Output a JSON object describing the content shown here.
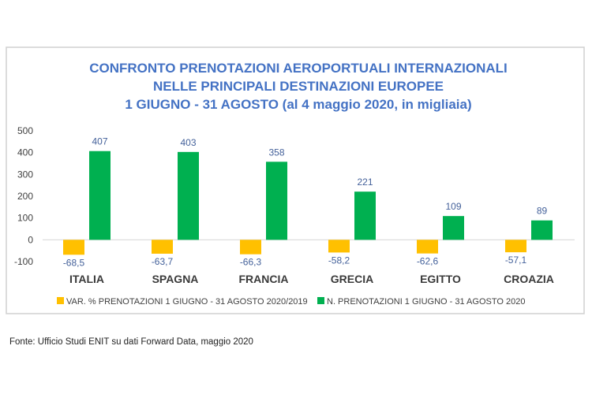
{
  "chart_data": {
    "type": "bar",
    "title": [
      "CONFRONTO PRENOTAZIONI AEROPORTUALI INTERNAZIONALI",
      "NELLE PRINCIPALI DESTINAZIONI EUROPEE",
      "1 GIUGNO - 31 AGOSTO (al 4 maggio 2020, in migliaia)"
    ],
    "categories": [
      "ITALIA",
      "SPAGNA",
      "FRANCIA",
      "GRECIA",
      "EGITTO",
      "CROAZIA"
    ],
    "series": [
      {
        "name": "VAR. % PRENOTAZIONI 1 GIUGNO - 31 AGOSTO 2020/2019",
        "values": [
          -68.5,
          -63.7,
          -66.3,
          -58.2,
          -62.6,
          -57.1
        ],
        "labels": [
          "-68,5",
          "-63,7",
          "-66,3",
          "-58,2",
          "-62,6",
          "-57,1"
        ],
        "color": "#ffc000"
      },
      {
        "name": "N. PRENOTAZIONI 1 GIUGNO - 31 AGOSTO 2020",
        "values": [
          407,
          403,
          358,
          221,
          109,
          89
        ],
        "labels": [
          "407",
          "403",
          "358",
          "221",
          "109",
          "89"
        ],
        "color": "#00b050"
      }
    ],
    "yticks": [
      "500",
      "400",
      "300",
      "200",
      "100",
      "0",
      "-100"
    ],
    "ylim": [
      -100,
      500
    ],
    "grid": false,
    "legend_position": "bottom"
  },
  "source": "Fonte: Ufficio Studi ENIT su dati Forward Data, maggio 2020"
}
